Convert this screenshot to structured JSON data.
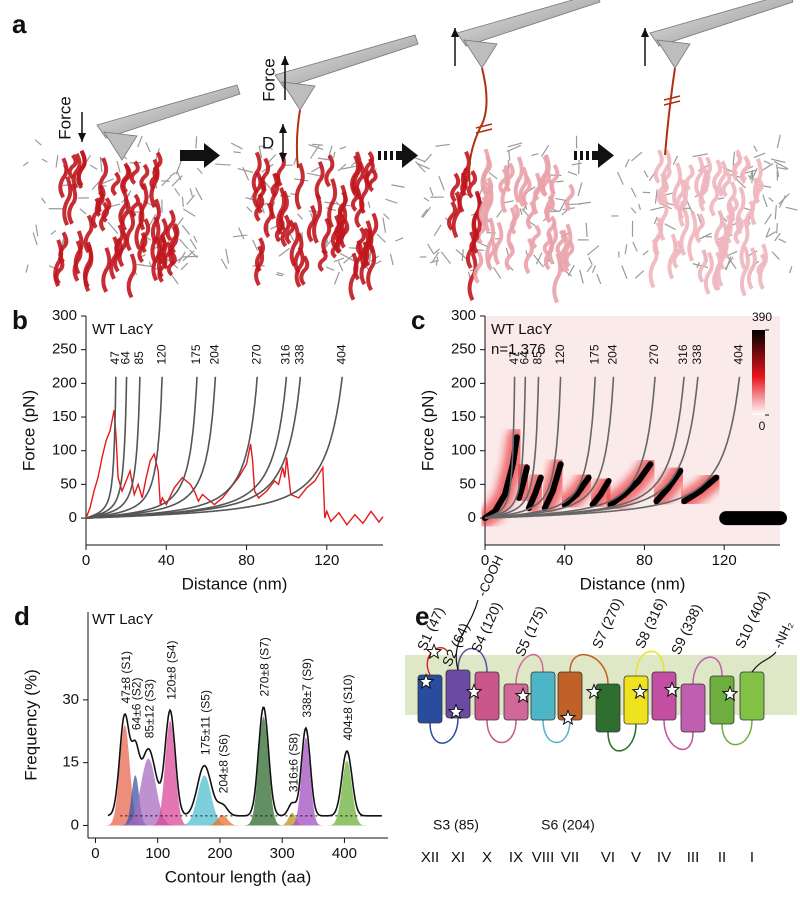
{
  "panel_a": {
    "label": "a",
    "force_labels": [
      "Force",
      "Force"
    ],
    "d_label": "D"
  },
  "chart_data": [
    {
      "panel_label": "b",
      "type": "line",
      "title": "WT LacY",
      "x_label": "Distance (nm)",
      "y_label": "Force (pN)",
      "xlim": [
        0,
        148
      ],
      "ylim": [
        -40,
        300
      ],
      "xticks": [
        0,
        40,
        80,
        120
      ],
      "yticks": [
        0,
        50,
        100,
        150,
        200,
        250,
        300
      ],
      "x": [
        0,
        2,
        4,
        6,
        8,
        10,
        12,
        14,
        15,
        16,
        17,
        18,
        20,
        22,
        24,
        26,
        27,
        28,
        30,
        32,
        34,
        36,
        37,
        38,
        40,
        44,
        48,
        52,
        54,
        56,
        58,
        60,
        64,
        68,
        72,
        76,
        80,
        82,
        83,
        84,
        86,
        90,
        94,
        96,
        98,
        99,
        100,
        102,
        106,
        110,
        114,
        116,
        118,
        119,
        120,
        122,
        126,
        130,
        134,
        138,
        142,
        146,
        148
      ],
      "series": [
        {
          "color": "#e41a1c",
          "values": [
            0,
            15,
            40,
            60,
            90,
            115,
            130,
            160,
            120,
            60,
            50,
            40,
            55,
            70,
            35,
            50,
            40,
            30,
            60,
            85,
            95,
            70,
            20,
            30,
            20,
            45,
            60,
            50,
            40,
            25,
            35,
            30,
            20,
            30,
            45,
            60,
            80,
            110,
            85,
            40,
            30,
            40,
            55,
            50,
            75,
            60,
            90,
            35,
            30,
            45,
            55,
            65,
            75,
            0,
            10,
            -5,
            8,
            -10,
            5,
            -8,
            10,
            -6,
            2
          ]
        }
      ],
      "wlc_curves": {
        "color": "#555555",
        "contour_lengths": [
          47,
          64,
          85,
          120,
          175,
          204,
          270,
          316,
          338,
          404
        ]
      }
    },
    {
      "panel_label": "c",
      "type": "density",
      "title": "WT LacY",
      "subtitle": "n=1,376",
      "x_label": "Distance (nm)",
      "y_label": "Force (pN)",
      "xlim": [
        0,
        148
      ],
      "ylim": [
        -40,
        300
      ],
      "xticks": [
        0,
        40,
        80,
        120
      ],
      "yticks": [
        0,
        50,
        100,
        150,
        200,
        250,
        300
      ],
      "series": [
        {
          "x": [
            0,
            5,
            10,
            14,
            16
          ],
          "values": [
            0,
            10,
            35,
            80,
            120
          ]
        },
        {
          "x": [
            17,
            19,
            21
          ],
          "values": [
            30,
            50,
            75
          ]
        },
        {
          "x": [
            22,
            25,
            28
          ],
          "values": [
            15,
            35,
            60
          ]
        },
        {
          "x": [
            30,
            34,
            38
          ],
          "values": [
            15,
            40,
            80
          ]
        },
        {
          "x": [
            40,
            46,
            52
          ],
          "values": [
            20,
            35,
            60
          ]
        },
        {
          "x": [
            54,
            58,
            62
          ],
          "values": [
            20,
            35,
            55
          ]
        },
        {
          "x": [
            63,
            70,
            77,
            83
          ],
          "values": [
            20,
            35,
            55,
            80
          ]
        },
        {
          "x": [
            86,
            92,
            98
          ],
          "values": [
            25,
            45,
            70
          ]
        },
        {
          "x": [
            100,
            108,
            116
          ],
          "values": [
            25,
            40,
            60
          ]
        },
        {
          "x": [
            121,
            135,
            148
          ],
          "values": [
            0,
            0,
            0
          ]
        }
      ],
      "colorbar": {
        "lim": [
          0,
          390
        ],
        "ticks": [
          0,
          390
        ]
      },
      "wlc_curves": {
        "color": "#666666",
        "contour_lengths": [
          47,
          64,
          85,
          120,
          175,
          204,
          270,
          316,
          338,
          404
        ]
      }
    },
    {
      "panel_label": "d",
      "type": "gaussian",
      "title": "WT LacY",
      "x_label": "Contour length (aa)",
      "y_label": "Frequency (%)",
      "xlim": [
        -12,
        470
      ],
      "ylim": [
        -3,
        51
      ],
      "xticks": [
        0,
        100,
        200,
        300,
        400
      ],
      "yticks": [
        0,
        15,
        30
      ],
      "baseline": 2.3,
      "series": [
        {
          "name": "47±8 (S1)",
          "color": "#e8674f",
          "mean": 47,
          "sd": 8,
          "height": 24
        },
        {
          "name": "64±6 (S2)",
          "color": "#3f55a8",
          "mean": 64,
          "sd": 6,
          "height": 12
        },
        {
          "name": "85±12 (S3)",
          "color": "#a86cc0",
          "mean": 85,
          "sd": 12,
          "height": 16
        },
        {
          "name": "120±8 (S4)",
          "color": "#d9489a",
          "mean": 120,
          "sd": 8,
          "height": 25
        },
        {
          "name": "175±11 (S5)",
          "color": "#52bfd0",
          "mean": 175,
          "sd": 11,
          "height": 12
        },
        {
          "name": "204±8 (S6)",
          "color": "#e8722c",
          "mean": 204,
          "sd": 8,
          "height": 2.5
        },
        {
          "name": "270±8 (S7)",
          "color": "#2e6b2e",
          "mean": 270,
          "sd": 8,
          "height": 26
        },
        {
          "name": "316±6 (S8)",
          "color": "#b8961e",
          "mean": 316,
          "sd": 6,
          "height": 3
        },
        {
          "name": "338±7 (S9)",
          "color": "#a24fbf",
          "mean": 338,
          "sd": 7,
          "height": 21
        },
        {
          "name": "404±8 (S10)",
          "color": "#6cb23c",
          "mean": 404,
          "sd": 8,
          "height": 15.5
        }
      ]
    }
  ],
  "panel_e": {
    "label": "e",
    "helices": [
      {
        "name": "XII",
        "color": "#2a4c9e"
      },
      {
        "name": "XI",
        "color": "#6a4aa2"
      },
      {
        "name": "X",
        "color": "#c9578c"
      },
      {
        "name": "IX",
        "color": "#d0699a"
      },
      {
        "name": "VIII",
        "color": "#4db6c6"
      },
      {
        "name": "VII",
        "color": "#c0612a"
      },
      {
        "name": "VI",
        "color": "#2e6e2e"
      },
      {
        "name": "V",
        "color": "#efe21e"
      },
      {
        "name": "IV",
        "color": "#c24fa2"
      },
      {
        "name": "III",
        "color": "#c05fb0"
      },
      {
        "name": "II",
        "color": "#6eae3e"
      },
      {
        "name": "I",
        "color": "#82c046"
      }
    ],
    "upper_labels": [
      {
        "text": "S1 (47)",
        "color": "#d62020"
      },
      {
        "text": "S2 (64)",
        "color": "#2a4c9e"
      },
      {
        "text": "S4 (120)",
        "color": "#d9489a"
      },
      {
        "text": "S5 (175)",
        "color": "#3fb0c4"
      },
      {
        "text": "S7 (270)",
        "color": "#2e6e2e"
      },
      {
        "text": "S8 (316)",
        "color": "#b8961e"
      },
      {
        "text": "S9 (338)",
        "color": "#a24fbf"
      },
      {
        "text": "S10 (404)",
        "color": "#6cb23c"
      }
    ],
    "lower_labels": [
      {
        "text": "S3 (85)",
        "color": "#8a3fb0"
      },
      {
        "text": "S6 (204)",
        "color": "#e8722c"
      }
    ],
    "c_terminus": "-COOH",
    "n_terminus": "-NH₂"
  }
}
